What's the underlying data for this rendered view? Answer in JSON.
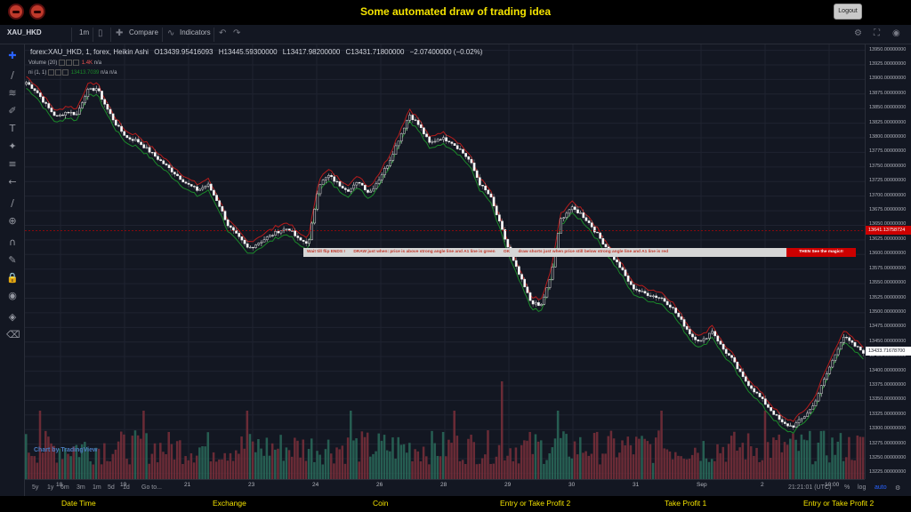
{
  "app": {
    "title": "Some automated draw of trading idea",
    "logout_label": "Logout"
  },
  "toolbar": {
    "symbol": "XAU_HKD",
    "interval": "1m",
    "compare_label": "Compare",
    "indicators_label": "Indicators"
  },
  "legend": {
    "title": "forex:XAU_HKD, 1, forex, Heikin Ashi",
    "open": "O13439.95416093",
    "high": "H13445.59300000",
    "low": "L13417.98200000",
    "close": "C13431.71800000",
    "change": "−2.07400000 (−0.02%)",
    "volume_label": "Volume (20)",
    "volume_value": "1.4K",
    "volume_na": "n/a",
    "ind_label": "ni (1, 1)",
    "ind_value": "13413.7039",
    "ind_na1": "n/a",
    "ind_na2": "n/a"
  },
  "banner": {
    "wait": "Wait till flip ENDS !",
    "draw": "DRAW just when: price is above strong angle line and A1 line is green",
    "ok": "OK",
    "shorts": "draw shorts just when price still below strong angle line and A1 line is red",
    "magic": "THEN See the magic!!"
  },
  "price_axis": {
    "labels": [
      "13950.00000000",
      "13925.00000000",
      "13900.00000000",
      "13875.00000000",
      "13850.00000000",
      "13825.00000000",
      "13800.00000000",
      "13775.00000000",
      "13750.00000000",
      "13725.00000000",
      "13700.00000000",
      "13675.00000000",
      "13650.00000000",
      "13625.00000000",
      "13600.00000000",
      "13575.00000000",
      "13550.00000000",
      "13525.00000000",
      "13500.00000000",
      "13475.00000000",
      "13450.00000000",
      "13425.00000000",
      "13400.00000000",
      "13375.00000000",
      "13350.00000000",
      "13325.00000000",
      "13300.00000000",
      "13275.00000000",
      "13250.00000000",
      "13225.00000000"
    ],
    "tag_red": "13641.13758724",
    "tag_current": "13433.71678700"
  },
  "time_axis": {
    "labels": [
      "18",
      "19",
      "21",
      "23",
      "24",
      "26",
      "28",
      "29",
      "30",
      "31",
      "Sep",
      "2",
      "10:00"
    ]
  },
  "bottombar": {
    "ranges": [
      "5y",
      "1y",
      "6m",
      "3m",
      "1m",
      "5d",
      "1d"
    ],
    "goto": "Go to...",
    "clock": "21:21:01 (UTC)",
    "pct": "%",
    "log": "log",
    "auto": "auto"
  },
  "watermark": "Chart by TradingView",
  "footer": {
    "items": [
      "Date Time",
      "Exchange",
      "Coin",
      "Entry or Take Profit 2",
      "Take Profit 1",
      "Entry or Take Profit 2"
    ]
  },
  "colors": {
    "up": "#26a69a",
    "down": "#ef5350",
    "title": "#f5e400",
    "ma_red": "#b71c1c",
    "ma_green": "#1b8a2a"
  },
  "chart_data": {
    "type": "candlestick",
    "symbol": "forex:XAU_HKD",
    "interval": "1",
    "style": "Heikin Ashi",
    "ylim": [
      13215,
      13960
    ],
    "x_ticks": [
      "18",
      "19",
      "21",
      "23",
      "24",
      "26",
      "28",
      "29",
      "30",
      "31",
      "Sep",
      "2",
      "10:00"
    ],
    "close_path": [
      13895,
      13880,
      13855,
      13835,
      13845,
      13840,
      13880,
      13885,
      13850,
      13820,
      13800,
      13795,
      13780,
      13765,
      13750,
      13735,
      13720,
      13710,
      13720,
      13690,
      13650,
      13630,
      13610,
      13620,
      13630,
      13640,
      13645,
      13625,
      13620,
      13720,
      13735,
      13720,
      13710,
      13725,
      13705,
      13730,
      13760,
      13800,
      13840,
      13820,
      13790,
      13800,
      13795,
      13780,
      13760,
      13720,
      13700,
      13650,
      13600,
      13560,
      13520,
      13510,
      13560,
      13660,
      13680,
      13670,
      13650,
      13625,
      13600,
      13575,
      13545,
      13535,
      13530,
      13525,
      13510,
      13485,
      13460,
      13450,
      13470,
      13440,
      13420,
      13390,
      13370,
      13350,
      13330,
      13310,
      13305,
      13320,
      13340,
      13380,
      13420,
      13460,
      13445,
      13433
    ],
    "volume_peak": 1400
  }
}
